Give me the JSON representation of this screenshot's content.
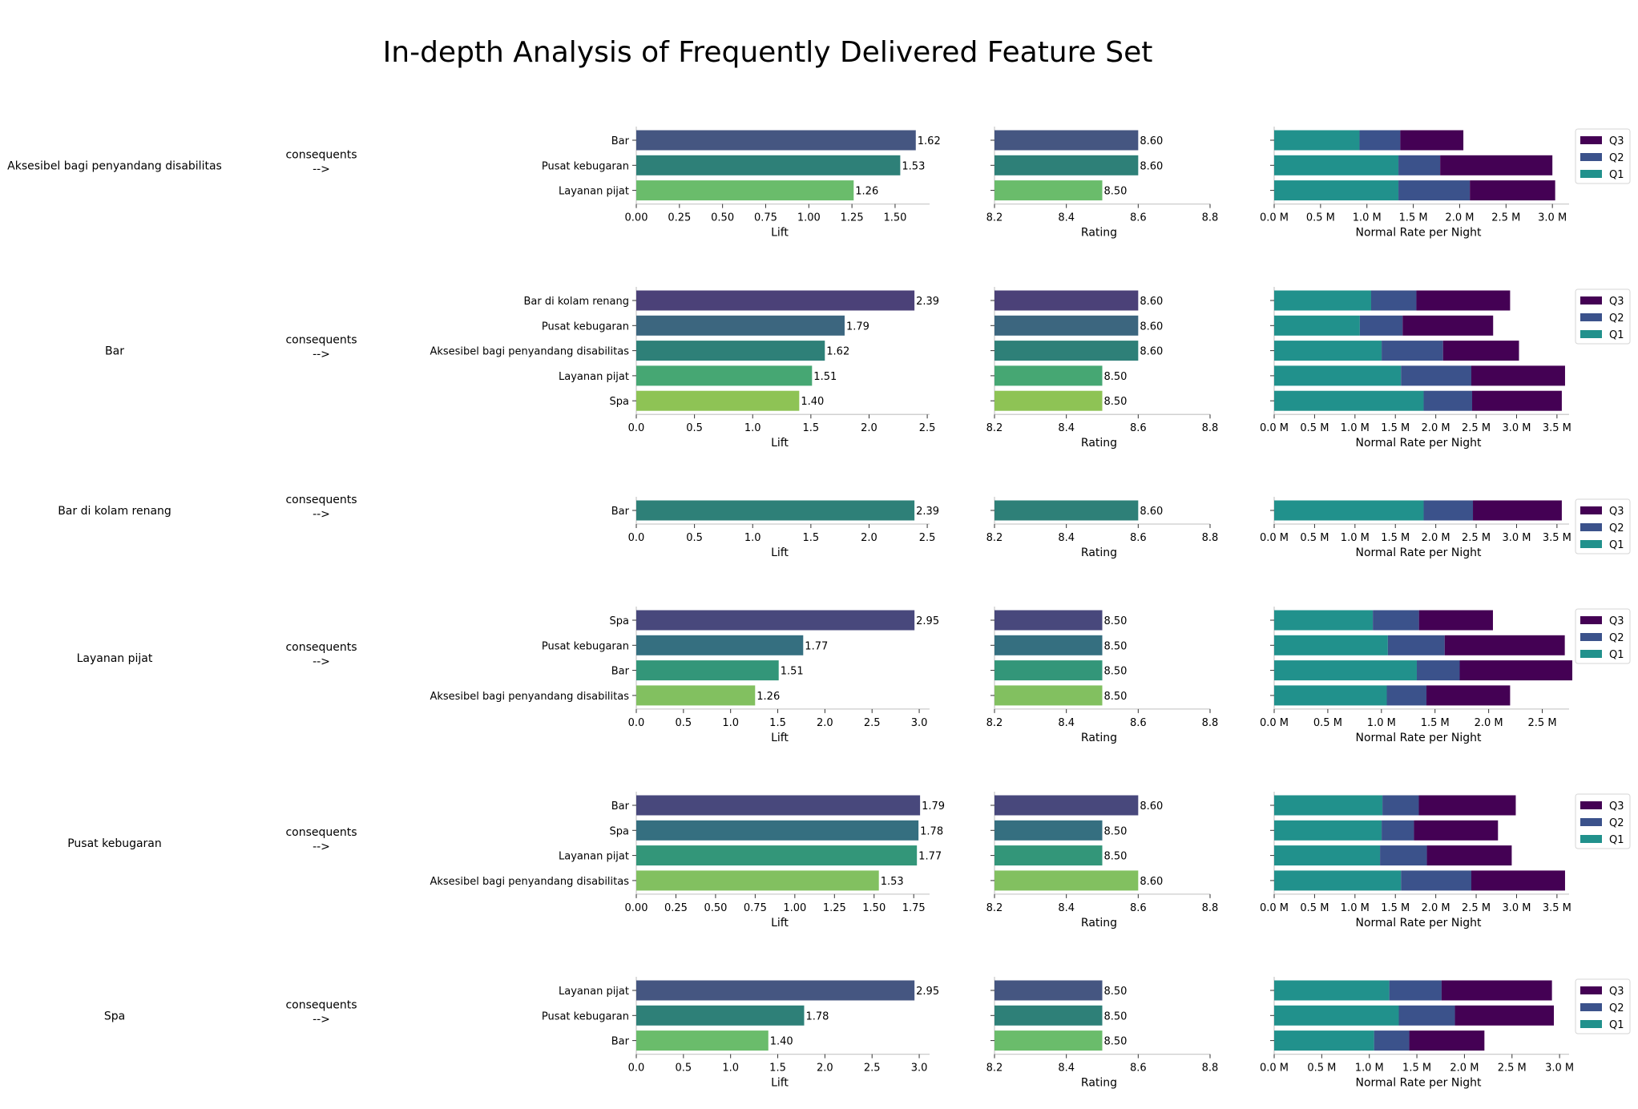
{
  "title": "In-depth Analysis of Frequently Delivered Feature Set",
  "connector": [
    "consequents",
    "-->"
  ],
  "legend": [
    "Q3",
    "Q2",
    "Q1"
  ],
  "colors": {
    "Q1": "#21918c",
    "Q2": "#3b528b",
    "Q3": "#440154",
    "axis": "#cccccc"
  },
  "axis_labels": {
    "lift": "Lift",
    "rating": "Rating",
    "rate": "Normal Rate per Night"
  },
  "chart_data": [
    {
      "type": "bar",
      "antecedent": "Aksesibel bagi penyandang disabilitas",
      "consequents": [
        "Bar",
        "Pusat kebugaran",
        "Layanan pijat"
      ],
      "bar_colors": [
        "#455681",
        "#2e8078",
        "#6abc6b"
      ],
      "lift": [
        1.62,
        1.53,
        1.26
      ],
      "lift_labels": [
        "1.62",
        "1.53",
        "1.26"
      ],
      "lift_xlim": [
        0,
        1.7
      ],
      "lift_ticks": [
        "0.00",
        "0.25",
        "0.50",
        "0.75",
        "1.00",
        "1.25",
        "1.50"
      ],
      "rating": [
        8.6,
        8.6,
        8.5
      ],
      "rating_labels": [
        "8.60",
        "8.60",
        "8.50"
      ],
      "rating_xlim": [
        8.2,
        8.8
      ],
      "rating_ticks": [
        "8.2",
        "8.4",
        "8.6",
        "8.8"
      ],
      "rate_series": {
        "Q1": [
          0.92,
          1.34,
          1.34
        ],
        "Q2": [
          0.44,
          0.45,
          0.77
        ],
        "Q3": [
          0.68,
          1.21,
          0.92
        ]
      },
      "rate_unit": "M",
      "rate_xlim": [
        0,
        3.18
      ],
      "rate_ticks": [
        "0.0 M",
        "0.5 M",
        "1.0 M",
        "1.5 M",
        "2.0 M",
        "2.5 M",
        "3.0 M"
      ]
    },
    {
      "type": "bar",
      "antecedent": "Bar",
      "consequents": [
        "Bar di kolam renang",
        "Pusat kebugaran",
        "Aksesibel bagi penyandang disabilitas",
        "Layanan pijat",
        "Spa"
      ],
      "bar_colors": [
        "#4b4178",
        "#3c667f",
        "#2e8078",
        "#46a773",
        "#8ec355"
      ],
      "lift": [
        2.39,
        1.79,
        1.62,
        1.51,
        1.4
      ],
      "lift_labels": [
        "2.39",
        "1.79",
        "1.62",
        "1.51",
        "1.40"
      ],
      "lift_xlim": [
        0,
        2.52
      ],
      "lift_ticks": [
        "0.0",
        "0.5",
        "1.0",
        "1.5",
        "2.0",
        "2.5"
      ],
      "rating": [
        8.6,
        8.6,
        8.6,
        8.5,
        8.5
      ],
      "rating_labels": [
        "8.60",
        "8.60",
        "8.60",
        "8.50",
        "8.50"
      ],
      "rating_xlim": [
        8.2,
        8.8
      ],
      "rating_ticks": [
        "8.2",
        "8.4",
        "8.6",
        "8.8"
      ],
      "rate_series": {
        "Q1": [
          1.2,
          1.06,
          1.33,
          1.57,
          1.85
        ],
        "Q2": [
          0.56,
          0.53,
          0.76,
          0.87,
          0.6
        ],
        "Q3": [
          1.16,
          1.12,
          0.94,
          1.16,
          1.11
        ]
      },
      "rate_unit": "M",
      "rate_xlim": [
        0,
        3.65
      ],
      "rate_ticks": [
        "0.0 M",
        "0.5 M",
        "1.0 M",
        "1.5 M",
        "2.0 M",
        "2.5 M",
        "3.0 M",
        "3.5 M"
      ]
    },
    {
      "type": "bar",
      "antecedent": "Bar di kolam renang",
      "consequents": [
        "Bar"
      ],
      "bar_colors": [
        "#2e8078"
      ],
      "lift": [
        2.39
      ],
      "lift_labels": [
        "2.39"
      ],
      "lift_xlim": [
        0,
        2.52
      ],
      "lift_ticks": [
        "0.0",
        "0.5",
        "1.0",
        "1.5",
        "2.0",
        "2.5"
      ],
      "rating": [
        8.6
      ],
      "rating_labels": [
        "8.60"
      ],
      "rating_xlim": [
        8.2,
        8.8
      ],
      "rating_ticks": [
        "8.2",
        "8.4",
        "8.6",
        "8.8"
      ],
      "rate_series": {
        "Q1": [
          1.85
        ],
        "Q2": [
          0.61
        ],
        "Q3": [
          1.1
        ]
      },
      "rate_unit": "M",
      "rate_xlim": [
        0,
        3.65
      ],
      "rate_ticks": [
        "0.0 M",
        "0.5 M",
        "1.0 M",
        "1.5 M",
        "2.0 M",
        "2.5 M",
        "3.0 M",
        "3.5 M"
      ]
    },
    {
      "type": "bar",
      "antecedent": "Layanan pijat",
      "consequents": [
        "Spa",
        "Pusat kebugaran",
        "Bar",
        "Aksesibel bagi penyandang disabilitas"
      ],
      "bar_colors": [
        "#48487c",
        "#356f80",
        "#339679",
        "#82c060"
      ],
      "lift": [
        2.95,
        1.77,
        1.51,
        1.26
      ],
      "lift_labels": [
        "2.95",
        "1.77",
        "1.51",
        "1.26"
      ],
      "lift_xlim": [
        0,
        3.11
      ],
      "lift_ticks": [
        "0.0",
        "0.5",
        "1.0",
        "1.5",
        "2.0",
        "2.5",
        "3.0"
      ],
      "rating": [
        8.5,
        8.5,
        8.5,
        8.5
      ],
      "rating_labels": [
        "8.50",
        "8.50",
        "8.50",
        "8.50"
      ],
      "rating_xlim": [
        8.2,
        8.8
      ],
      "rating_ticks": [
        "8.2",
        "8.4",
        "8.6",
        "8.8"
      ],
      "rate_series": {
        "Q1": [
          0.92,
          1.06,
          1.33,
          1.05
        ],
        "Q2": [
          0.43,
          0.53,
          0.4,
          0.37
        ],
        "Q3": [
          0.69,
          1.12,
          1.05,
          0.78
        ]
      },
      "rate_unit": "M",
      "rate_xlim": [
        0,
        2.75
      ],
      "rate_ticks": [
        "0.0 M",
        "0.5 M",
        "1.0 M",
        "1.5 M",
        "2.0 M",
        "2.5 M"
      ]
    },
    {
      "type": "bar",
      "antecedent": "Pusat kebugaran",
      "consequents": [
        "Bar",
        "Spa",
        "Layanan pijat",
        "Aksesibel bagi penyandang disabilitas"
      ],
      "bar_colors": [
        "#48487c",
        "#356f80",
        "#339679",
        "#82c060"
      ],
      "lift": [
        1.79,
        1.78,
        1.77,
        1.53
      ],
      "lift_labels": [
        "1.79",
        "1.78",
        "1.77",
        "1.53"
      ],
      "lift_xlim": [
        0,
        1.85
      ],
      "lift_ticks": [
        "0.00",
        "0.25",
        "0.50",
        "0.75",
        "1.00",
        "1.25",
        "1.50",
        "1.75"
      ],
      "rating": [
        8.6,
        8.5,
        8.5,
        8.6
      ],
      "rating_labels": [
        "8.60",
        "8.50",
        "8.50",
        "8.60"
      ],
      "rating_xlim": [
        8.2,
        8.8
      ],
      "rating_ticks": [
        "8.2",
        "8.4",
        "8.6",
        "8.8"
      ],
      "rate_series": {
        "Q1": [
          1.34,
          1.33,
          1.31,
          1.57
        ],
        "Q2": [
          0.45,
          0.4,
          0.58,
          0.87
        ],
        "Q3": [
          1.2,
          1.04,
          1.05,
          1.16
        ]
      },
      "rate_unit": "M",
      "rate_xlim": [
        0,
        3.65
      ],
      "rate_ticks": [
        "0.0 M",
        "0.5 M",
        "1.0 M",
        "1.5 M",
        "2.0 M",
        "2.5 M",
        "3.0 M",
        "3.5 M"
      ]
    },
    {
      "type": "bar",
      "antecedent": "Spa",
      "consequents": [
        "Layanan pijat",
        "Pusat kebugaran",
        "Bar"
      ],
      "bar_colors": [
        "#455681",
        "#2e8078",
        "#6abc6b"
      ],
      "lift": [
        2.95,
        1.78,
        1.4
      ],
      "lift_labels": [
        "2.95",
        "1.78",
        "1.40"
      ],
      "lift_xlim": [
        0,
        3.11
      ],
      "lift_ticks": [
        "0.0",
        "0.5",
        "1.0",
        "1.5",
        "2.0",
        "2.5",
        "3.0"
      ],
      "rating": [
        8.5,
        8.5,
        8.5
      ],
      "rating_labels": [
        "8.50",
        "8.50",
        "8.50"
      ],
      "rating_xlim": [
        8.2,
        8.8
      ],
      "rating_ticks": [
        "8.2",
        "8.4",
        "8.6",
        "8.8"
      ],
      "rate_series": {
        "Q1": [
          1.21,
          1.31,
          1.05
        ],
        "Q2": [
          0.55,
          0.59,
          0.37
        ],
        "Q3": [
          1.16,
          1.04,
          0.79
        ]
      },
      "rate_unit": "M",
      "rate_xlim": [
        0,
        3.1
      ],
      "rate_ticks": [
        "0.0 M",
        "0.5 M",
        "1.0 M",
        "1.5 M",
        "2.0 M",
        "2.5 M",
        "3.0 M"
      ]
    }
  ]
}
